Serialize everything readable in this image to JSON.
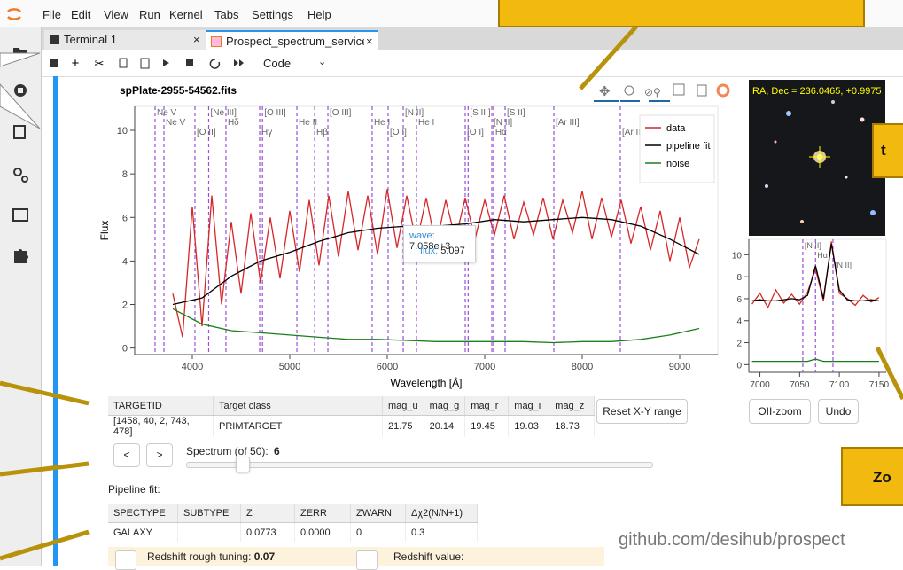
{
  "menu": [
    "File",
    "Edit",
    "View",
    "Run",
    "Kernel",
    "Tabs",
    "Settings",
    "Help"
  ],
  "tabs": [
    "Terminal 1",
    "Prospect_spectrum_service"
  ],
  "toolbar": {
    "cell_type": "Code"
  },
  "spectrum_plot": {
    "type": "line",
    "title": "spPlate-2955-54562.fits",
    "xlabel": "Wavelength [Å]",
    "ylabel": "Flux",
    "xlim": [
      3409,
      9391
    ],
    "ylim": [
      -0.3,
      11.1
    ],
    "xticks": [
      4000,
      5000,
      6000,
      7000,
      8000,
      9000
    ],
    "yticks": [
      0,
      2,
      4,
      6,
      8,
      10
    ],
    "legend": "upper right",
    "series": [
      {
        "name": "data",
        "color": "#d62728",
        "x": [
          3800,
          3900,
          4000,
          4100,
          4200,
          4300,
          4400,
          4500,
          4600,
          4700,
          4800,
          4900,
          5000,
          5100,
          5200,
          5300,
          5400,
          5500,
          5600,
          5700,
          5800,
          5900,
          6000,
          6100,
          6200,
          6300,
          6400,
          6500,
          6600,
          6700,
          6800,
          6900,
          7000,
          7100,
          7200,
          7300,
          7400,
          7500,
          7600,
          7700,
          7800,
          7900,
          8000,
          8100,
          8200,
          8300,
          8400,
          8500,
          8600,
          8700,
          8800,
          8900,
          9000,
          9100,
          9200
        ],
        "values": [
          2.5,
          0.5,
          6.5,
          1.0,
          7.0,
          2.0,
          5.8,
          2.5,
          6.2,
          3.0,
          6.0,
          3.2,
          6.3,
          3.5,
          6.8,
          3.8,
          7.0,
          4.2,
          7.2,
          4.5,
          7.0,
          4.3,
          7.3,
          4.6,
          7.0,
          4.8,
          6.9,
          4.7,
          6.8,
          5.0,
          6.9,
          5.0,
          6.8,
          5.2,
          7.0,
          5.0,
          6.7,
          5.2,
          6.9,
          5.0,
          6.8,
          5.3,
          7.2,
          5.0,
          6.9,
          5.1,
          6.8,
          4.8,
          6.5,
          4.5,
          6.3,
          4.0,
          6.0,
          3.7,
          5.0
        ]
      },
      {
        "name": "pipeline fit",
        "color": "#000000",
        "x": [
          3800,
          4100,
          4400,
          4700,
          5000,
          5300,
          5600,
          5900,
          6200,
          6500,
          6800,
          7100,
          7400,
          7700,
          8000,
          8300,
          8600,
          8900,
          9200
        ],
        "values": [
          2.0,
          2.3,
          3.3,
          4.0,
          4.4,
          4.9,
          5.3,
          5.5,
          5.6,
          5.6,
          5.7,
          5.9,
          5.8,
          5.9,
          6.0,
          5.9,
          5.6,
          5.0,
          4.3
        ]
      },
      {
        "name": "noise",
        "color": "#1a7f1a",
        "x": [
          3800,
          4100,
          4400,
          4700,
          5000,
          5300,
          5600,
          5900,
          6200,
          6500,
          6800,
          7100,
          7400,
          7700,
          8000,
          8300,
          8600,
          8900,
          9200
        ],
        "values": [
          1.8,
          1.1,
          0.8,
          0.7,
          0.6,
          0.5,
          0.4,
          0.4,
          0.35,
          0.3,
          0.3,
          0.3,
          0.3,
          0.25,
          0.3,
          0.3,
          0.4,
          0.6,
          0.9
        ]
      }
    ],
    "lines": [
      {
        "name": "Ne V",
        "wavelength": 3618
      },
      {
        "name": "Ne V",
        "wavelength": 3709
      },
      {
        "name": "[O II]",
        "wavelength": 4027
      },
      {
        "name": "[Ne III]",
        "wavelength": 4168
      },
      {
        "name": "Hδ",
        "wavelength": 4345
      },
      {
        "name": "Hγ",
        "wavelength": 4691
      },
      {
        "name": "[O III]",
        "wavelength": 4720
      },
      {
        "name": "He II",
        "wavelength": 5073
      },
      {
        "name": "Hβ",
        "wavelength": 5255
      },
      {
        "name": "[O III]",
        "wavelength": 5391
      },
      {
        "name": "He I",
        "wavelength": 5845
      },
      {
        "name": "[O I]",
        "wavelength": 6009
      },
      {
        "name": "[N II]",
        "wavelength": 6164
      },
      {
        "name": "He I",
        "wavelength": 6300
      },
      {
        "name": "[O I]",
        "wavelength": 6800
      },
      {
        "name": "[S III]",
        "wavelength": 6830
      },
      {
        "name": "[N II]",
        "wavelength": 7073
      },
      {
        "name": "Hα",
        "wavelength": 7090
      },
      {
        "name": "[S II]",
        "wavelength": 7209
      },
      {
        "name": "[Ar III]",
        "wavelength": 7709
      },
      {
        "name": "[Ar III]",
        "wavelength": 8391
      }
    ],
    "tooltip": {
      "wave_label": "wave:",
      "wave": "7.058e+3",
      "flux_label": "flux:",
      "flux": 5.097
    }
  },
  "image": {
    "caption": "RA, Dec = 236.0465, +0.9975"
  },
  "zoom_plot": {
    "type": "line",
    "xlim": [
      6986,
      7159
    ],
    "ylim": [
      -0.7,
      11.4
    ],
    "xticks": [
      7000,
      7050,
      7100,
      7150
    ],
    "yticks": [
      0,
      2,
      4,
      6,
      8,
      10
    ],
    "series": [
      {
        "name": "data",
        "color": "#d62728",
        "x": [
          6990,
          7000,
          7010,
          7020,
          7030,
          7040,
          7050,
          7060,
          7070,
          7080,
          7090,
          7100,
          7110,
          7120,
          7130,
          7140,
          7150
        ],
        "values": [
          5.5,
          6.5,
          5.2,
          6.8,
          5.6,
          6.4,
          5.5,
          6.6,
          8.7,
          5.8,
          11.2,
          6.5,
          6.0,
          5.4,
          6.3,
          5.7,
          6.1
        ]
      },
      {
        "name": "pipeline fit",
        "color": "#000000",
        "x": [
          6990,
          7000,
          7010,
          7020,
          7030,
          7040,
          7050,
          7060,
          7070,
          7080,
          7090,
          7100,
          7110,
          7120,
          7130,
          7140,
          7150
        ],
        "values": [
          5.8,
          5.9,
          5.8,
          5.8,
          5.9,
          6.0,
          5.9,
          6.3,
          9.0,
          6.0,
          11.0,
          6.8,
          5.9,
          5.8,
          5.8,
          5.9,
          5.8
        ]
      },
      {
        "name": "noise",
        "color": "#1a7f1a",
        "x": [
          6990,
          7000,
          7010,
          7020,
          7030,
          7040,
          7050,
          7060,
          7070,
          7080,
          7090,
          7100,
          7110,
          7120,
          7130,
          7140,
          7150
        ],
        "values": [
          0.3,
          0.3,
          0.3,
          0.3,
          0.3,
          0.3,
          0.3,
          0.3,
          0.5,
          0.3,
          0.3,
          0.3,
          0.3,
          0.3,
          0.3,
          0.3,
          0.3
        ]
      }
    ],
    "lines": [
      {
        "name": "[N II]",
        "wavelength": 7054
      },
      {
        "name": "Hα",
        "wavelength": 7070
      },
      {
        "name": "[N II]",
        "wavelength": 7092
      }
    ]
  },
  "buttons": {
    "reset": "Reset X-Y range",
    "oii_zoom": "OII-zoom",
    "undo": "Undo"
  },
  "target_table": {
    "columns": [
      "TARGETID",
      "Target class",
      "mag_u",
      "mag_g",
      "mag_r",
      "mag_i",
      "mag_z"
    ],
    "rows": [
      [
        "[1458, 40, 2, 743, 478]",
        "PRIMTARGET",
        21.75,
        20.14,
        19.45,
        19.03,
        18.73
      ]
    ]
  },
  "navigation": {
    "prev": "<",
    "next": ">",
    "spectrum_label": "Spectrum (of 50):",
    "spectrum_index": 6
  },
  "fit_title": "Pipeline fit:",
  "fit_table": {
    "columns": [
      "SPECTYPE",
      "SUBTYPE",
      "Z",
      "ZERR",
      "ZWARN",
      "Δχ2(N/N+1)"
    ],
    "rows": [
      [
        "GALAXY",
        null,
        0.0773,
        "0.0000",
        0,
        0.3
      ]
    ]
  },
  "redshift": {
    "rough_label": "Redshift rough tuning:",
    "rough_value": 0.07,
    "value_label": "Redshift value:"
  },
  "footer": "github.com/desihub/prospect",
  "annotations": [
    "t",
    "Zo"
  ]
}
